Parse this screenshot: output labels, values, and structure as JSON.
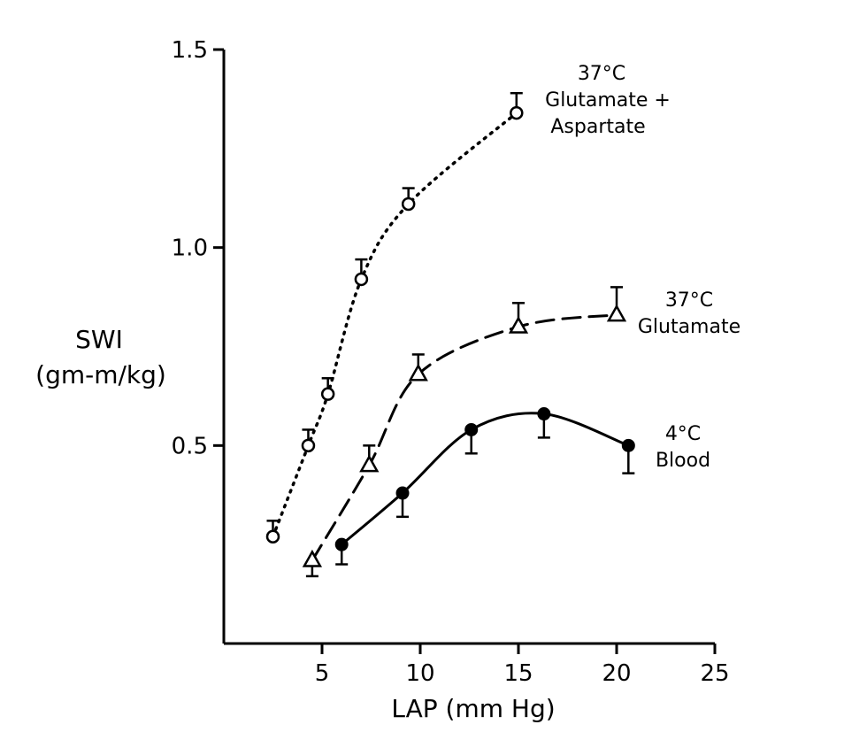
{
  "chart_data": {
    "type": "line",
    "xlabel": "LAP (mm Hg)",
    "ylabel_lines": [
      "SWI",
      "(gm-m/kg)"
    ],
    "xlim": [
      0,
      25
    ],
    "ylim": [
      0,
      1.5
    ],
    "xticks": [
      5,
      10,
      15,
      20,
      25
    ],
    "yticks": [
      0.5,
      1.0,
      1.5
    ],
    "ytick_labels": [
      "0.5",
      "1.0",
      "1.5"
    ],
    "grid": false,
    "series": [
      {
        "label_lines": [
          "37°C",
          "Glutamate +",
          "Aspartate"
        ],
        "marker": "circle-open",
        "line": "dotted",
        "x": [
          2.5,
          4.3,
          5.3,
          7.0,
          9.4,
          14.9
        ],
        "y": [
          0.27,
          0.5,
          0.63,
          0.92,
          1.11,
          1.34
        ],
        "error": [
          0.04,
          0.04,
          0.04,
          0.05,
          0.04,
          0.05
        ],
        "error_dir": "up"
      },
      {
        "label_lines": [
          "37°C",
          "Glutamate"
        ],
        "marker": "triangle-open",
        "line": "dashed",
        "x": [
          4.5,
          7.4,
          9.9,
          15.0,
          20.0
        ],
        "y": [
          0.21,
          0.45,
          0.68,
          0.8,
          0.83
        ],
        "error": [
          0.04,
          0.05,
          0.05,
          0.06,
          0.07
        ],
        "error_dir": "mixed"
      },
      {
        "label_lines": [
          "4°C",
          "Blood"
        ],
        "marker": "circle-filled",
        "line": "solid",
        "x": [
          6.0,
          9.1,
          12.6,
          16.3,
          20.6
        ],
        "y": [
          0.25,
          0.38,
          0.54,
          0.58,
          0.5
        ],
        "error": [
          0.05,
          0.06,
          0.06,
          0.06,
          0.07
        ],
        "error_dir": "down"
      }
    ]
  }
}
